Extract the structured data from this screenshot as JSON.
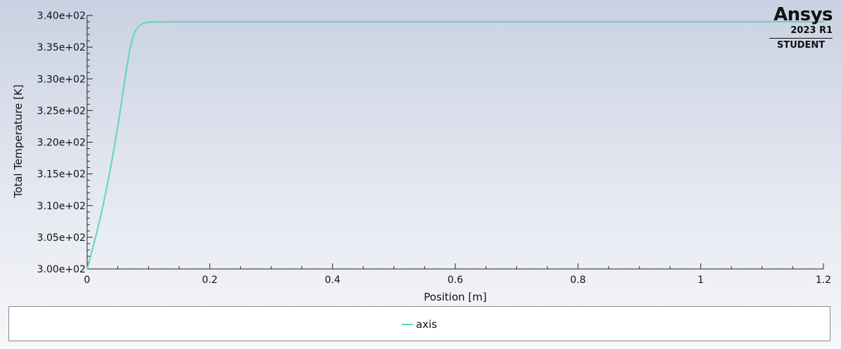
{
  "chart_data": {
    "type": "line",
    "xlabel": "Position [m]",
    "ylabel": "Total Temperature [K]",
    "xlim": [
      0,
      1.2
    ],
    "ylim": [
      300,
      340
    ],
    "xticks": [
      0,
      0.2,
      0.4,
      0.6,
      0.8,
      1,
      1.2
    ],
    "xtick_labels": [
      "0",
      "0.2",
      "0.4",
      "0.6",
      "0.8",
      "1",
      "1.2"
    ],
    "yticks": [
      300,
      305,
      310,
      315,
      320,
      325,
      330,
      335,
      340
    ],
    "ytick_labels": [
      "3.00e+02",
      "3.05e+02",
      "3.10e+02",
      "3.15e+02",
      "3.20e+02",
      "3.25e+02",
      "3.30e+02",
      "3.35e+02",
      "3.40e+02"
    ],
    "grid": false,
    "legend_position": "bottom",
    "series": [
      {
        "name": "axis",
        "color": "#5cd6c0",
        "x": [
          0,
          0.005,
          0.01,
          0.015,
          0.02,
          0.025,
          0.03,
          0.035,
          0.04,
          0.045,
          0.05,
          0.055,
          0.06,
          0.065,
          0.07,
          0.075,
          0.08,
          0.085,
          0.09,
          0.095,
          0.1,
          0.105,
          0.11,
          0.12,
          0.13,
          0.15,
          0.2,
          0.4,
          0.6,
          0.8,
          1.0,
          1.2
        ],
        "y": [
          300,
          301.8,
          303.6,
          305.5,
          307.5,
          309.6,
          311.9,
          314.3,
          316.9,
          319.6,
          322.5,
          325.6,
          328.9,
          332.0,
          334.8,
          336.7,
          337.8,
          338.4,
          338.7,
          338.85,
          338.92,
          338.95,
          338.97,
          338.98,
          338.99,
          339.0,
          339.0,
          339.0,
          339.0,
          339.0,
          339.0,
          339.0
        ]
      }
    ]
  },
  "logo": {
    "brand": "Ansys",
    "version": "2023 R1",
    "edition": "STUDENT"
  }
}
